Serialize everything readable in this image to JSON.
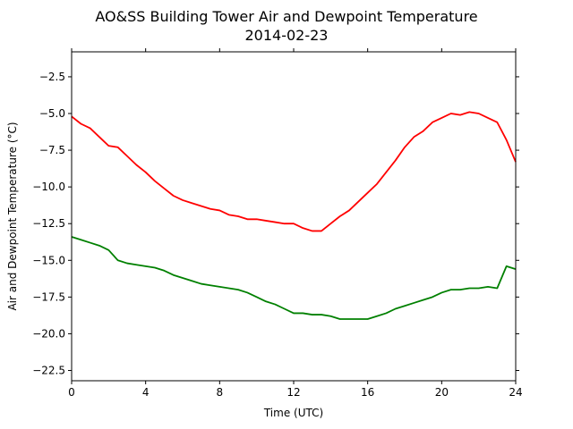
{
  "chart_data": {
    "type": "line",
    "title": "AO&SS Building Tower Air and Dewpoint Temperature",
    "subtitle": "2014-02-23",
    "xlabel": "Time (UTC)",
    "ylabel": "Air and Dewpoint Temperature (°C)",
    "xlim": [
      0,
      24
    ],
    "ylim": [
      -23.2,
      -0.8
    ],
    "xticks": [
      0,
      4,
      8,
      12,
      16,
      20,
      24
    ],
    "yticks": [
      -2.5,
      -5.0,
      -7.5,
      -10.0,
      -12.5,
      -15.0,
      -17.5,
      -20.0,
      -22.5
    ],
    "grid": false,
    "legend": "none",
    "series": [
      {
        "color": "#ff0000",
        "x": [
          0,
          0.5,
          1,
          1.5,
          2,
          2.5,
          3,
          3.5,
          4,
          4.5,
          5,
          5.5,
          6,
          6.5,
          7,
          7.5,
          8,
          8.5,
          9,
          9.5,
          10,
          10.5,
          11,
          11.5,
          12,
          12.5,
          13,
          13.5,
          14,
          14.5,
          15,
          15.5,
          16,
          16.5,
          17,
          17.5,
          18,
          18.5,
          19,
          19.5,
          20,
          20.5,
          21,
          21.5,
          22,
          22.5,
          23,
          23.5,
          24
        ],
        "values": [
          -5.2,
          -5.7,
          -6.0,
          -6.6,
          -7.2,
          -7.3,
          -7.9,
          -8.5,
          -9.0,
          -9.6,
          -10.1,
          -10.6,
          -10.9,
          -11.1,
          -11.3,
          -11.5,
          -11.6,
          -11.9,
          -12.0,
          -12.2,
          -12.2,
          -12.3,
          -12.4,
          -12.5,
          -12.5,
          -12.8,
          -13.0,
          -13.0,
          -12.5,
          -12.0,
          -11.6,
          -11.0,
          -10.4,
          -9.8,
          -9.0,
          -8.2,
          -7.3,
          -6.6,
          -6.2,
          -5.6,
          -5.3,
          -5.0,
          -5.1,
          -4.9,
          -5.0,
          -5.3,
          -5.6,
          -6.8,
          -8.3
        ]
      },
      {
        "color": "#008000",
        "x": [
          0,
          0.5,
          1,
          1.5,
          2,
          2.5,
          3,
          3.5,
          4,
          4.5,
          5,
          5.5,
          6,
          6.5,
          7,
          7.5,
          8,
          8.5,
          9,
          9.5,
          10,
          10.5,
          11,
          11.5,
          12,
          12.5,
          13,
          13.5,
          14,
          14.5,
          15,
          15.5,
          16,
          16.5,
          17,
          17.5,
          18,
          18.5,
          19,
          19.5,
          20,
          20.5,
          21,
          21.5,
          22,
          22.5,
          23,
          23.5,
          24
        ],
        "values": [
          -13.4,
          -13.6,
          -13.8,
          -14.0,
          -14.3,
          -15.0,
          -15.2,
          -15.3,
          -15.4,
          -15.5,
          -15.7,
          -16.0,
          -16.2,
          -16.4,
          -16.6,
          -16.7,
          -16.8,
          -16.9,
          -17.0,
          -17.2,
          -17.5,
          -17.8,
          -18.0,
          -18.3,
          -18.6,
          -18.6,
          -18.7,
          -18.7,
          -18.8,
          -19.0,
          -19.0,
          -19.0,
          -19.0,
          -18.8,
          -18.6,
          -18.3,
          -18.1,
          -17.9,
          -17.7,
          -17.5,
          -17.2,
          -17.0,
          -17.0,
          -16.9,
          -16.9,
          -16.8,
          -16.9,
          -15.4,
          -15.6
        ]
      }
    ]
  }
}
